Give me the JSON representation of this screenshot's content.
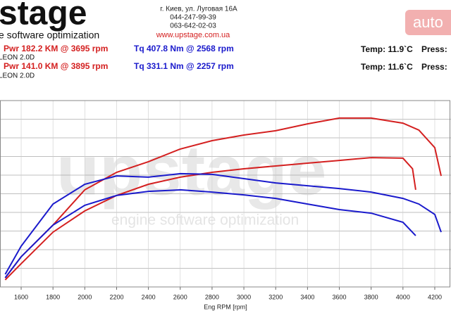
{
  "header": {
    "logo": "stage",
    "tagline": "e software optimization",
    "address": "г. Киев, ул. Луговая 16А",
    "phone1": "044-247-99-39",
    "phone2": "063-642-02-03",
    "url": "www.upstage.com.ua",
    "badge": "auto"
  },
  "runs": [
    {
      "power": "Pwr  182.2 KM @ 3695 rpm",
      "torque": "Tq  407.8 Nm @ 2568 rpm",
      "temp": "Temp: 11.9`C",
      "press": "Press:",
      "car": "LEON 2.0D"
    },
    {
      "power": "Pwr  141.0 KM @ 3895 rpm",
      "torque": "Tq  331.1 Nm @ 2257 rpm",
      "temp": "Temp: 11.6`C",
      "press": "Press:",
      "car": "LEON 2.0D"
    }
  ],
  "watermark": {
    "logo": "upstage",
    "tagline": "engine software optimization"
  },
  "chart_data": {
    "type": "line",
    "x_label": "Eng RPM [rpm]",
    "xlim": [
      1467,
      4302
    ],
    "xticks": [
      1600,
      1800,
      2000,
      2200,
      2400,
      2600,
      2800,
      3000,
      3200,
      3400,
      3600,
      3800,
      4000,
      4200
    ],
    "ylim": [
      0,
      100
    ],
    "yticks": [
      10,
      20,
      30,
      40,
      50,
      60,
      70,
      80,
      90
    ],
    "grid": true,
    "series": [
      {
        "color": "#d42020",
        "x": [
          1500,
          1600,
          1800,
          2000,
          2200,
          2400,
          2600,
          2800,
          3000,
          3200,
          3400,
          3600,
          3800,
          4000,
          4100,
          4200,
          4240
        ],
        "values": [
          4.9,
          16.2,
          33.2,
          52.1,
          61.5,
          67.2,
          74,
          78.5,
          81.5,
          83.8,
          87.5,
          90.6,
          90.6,
          87.9,
          84.2,
          74.7,
          59.6
        ]
      },
      {
        "color": "#d42020",
        "x": [
          1500,
          1600,
          1800,
          2000,
          2200,
          2400,
          2600,
          2800,
          3000,
          3200,
          3400,
          3600,
          3800,
          4000,
          4060,
          4080
        ],
        "values": [
          3.8,
          12.5,
          29.4,
          40.8,
          49.1,
          55.1,
          58.9,
          61.5,
          63.4,
          64.9,
          66.4,
          67.9,
          69.4,
          69.1,
          63.4,
          52.1
        ]
      },
      {
        "color": "#1a1acc",
        "x": [
          1500,
          1600,
          1800,
          2000,
          2200,
          2400,
          2600,
          2800,
          3000,
          3200,
          3400,
          3600,
          3800,
          4000,
          4100,
          4200,
          4240
        ],
        "values": [
          6.8,
          21.9,
          44.5,
          55.1,
          59.6,
          58.9,
          60.8,
          60.4,
          58.1,
          55.8,
          54.3,
          52.8,
          50.9,
          47.5,
          44.5,
          38.9,
          29.4
        ]
      },
      {
        "color": "#1a1acc",
        "x": [
          1500,
          1600,
          1800,
          2000,
          2200,
          2400,
          2600,
          2800,
          3000,
          3200,
          3400,
          3600,
          3800,
          4000,
          4080
        ],
        "values": [
          4.9,
          16.2,
          33.2,
          43.8,
          49.1,
          51.3,
          52.1,
          50.9,
          49.4,
          47.5,
          44.5,
          41.5,
          39.6,
          34.7,
          27.5
        ]
      }
    ]
  }
}
